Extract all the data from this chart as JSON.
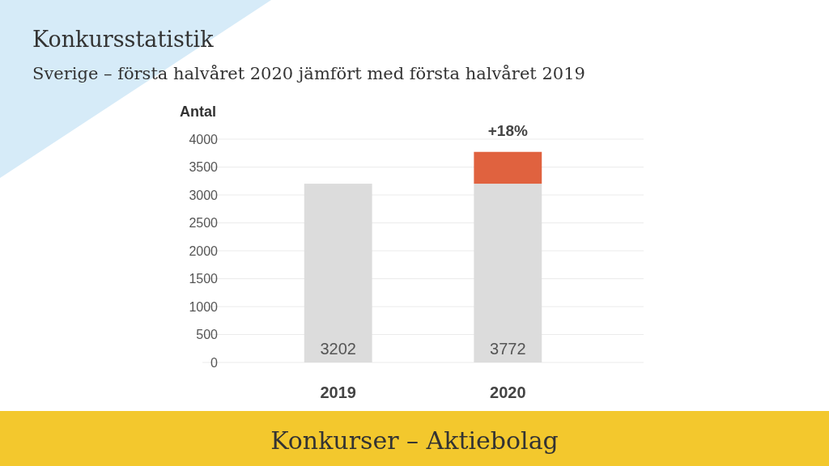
{
  "chart_data": {
    "type": "bar",
    "title": "Konkursstatistik",
    "subtitle": "Sverige – första halvåret 2020 jämfört med första halvåret 2019",
    "ylabel": "Antal",
    "categories": [
      "2019",
      "2020"
    ],
    "stacked": true,
    "series": [
      {
        "color": "#dcdcdc",
        "values": [
          3202,
          3202
        ]
      },
      {
        "color": "#e0623f",
        "values": [
          0,
          570
        ]
      }
    ],
    "totals": [
      "3202",
      "3772"
    ],
    "ylim": [
      0,
      4000
    ],
    "yticks": [
      0,
      500,
      1000,
      1500,
      2000,
      2500,
      3000,
      3500,
      4000
    ],
    "grid": "y",
    "annotations": [
      {
        "text": "+18%",
        "x": "2020",
        "y": 3772
      },
      "Konkurser – Aktiebolag"
    ]
  }
}
